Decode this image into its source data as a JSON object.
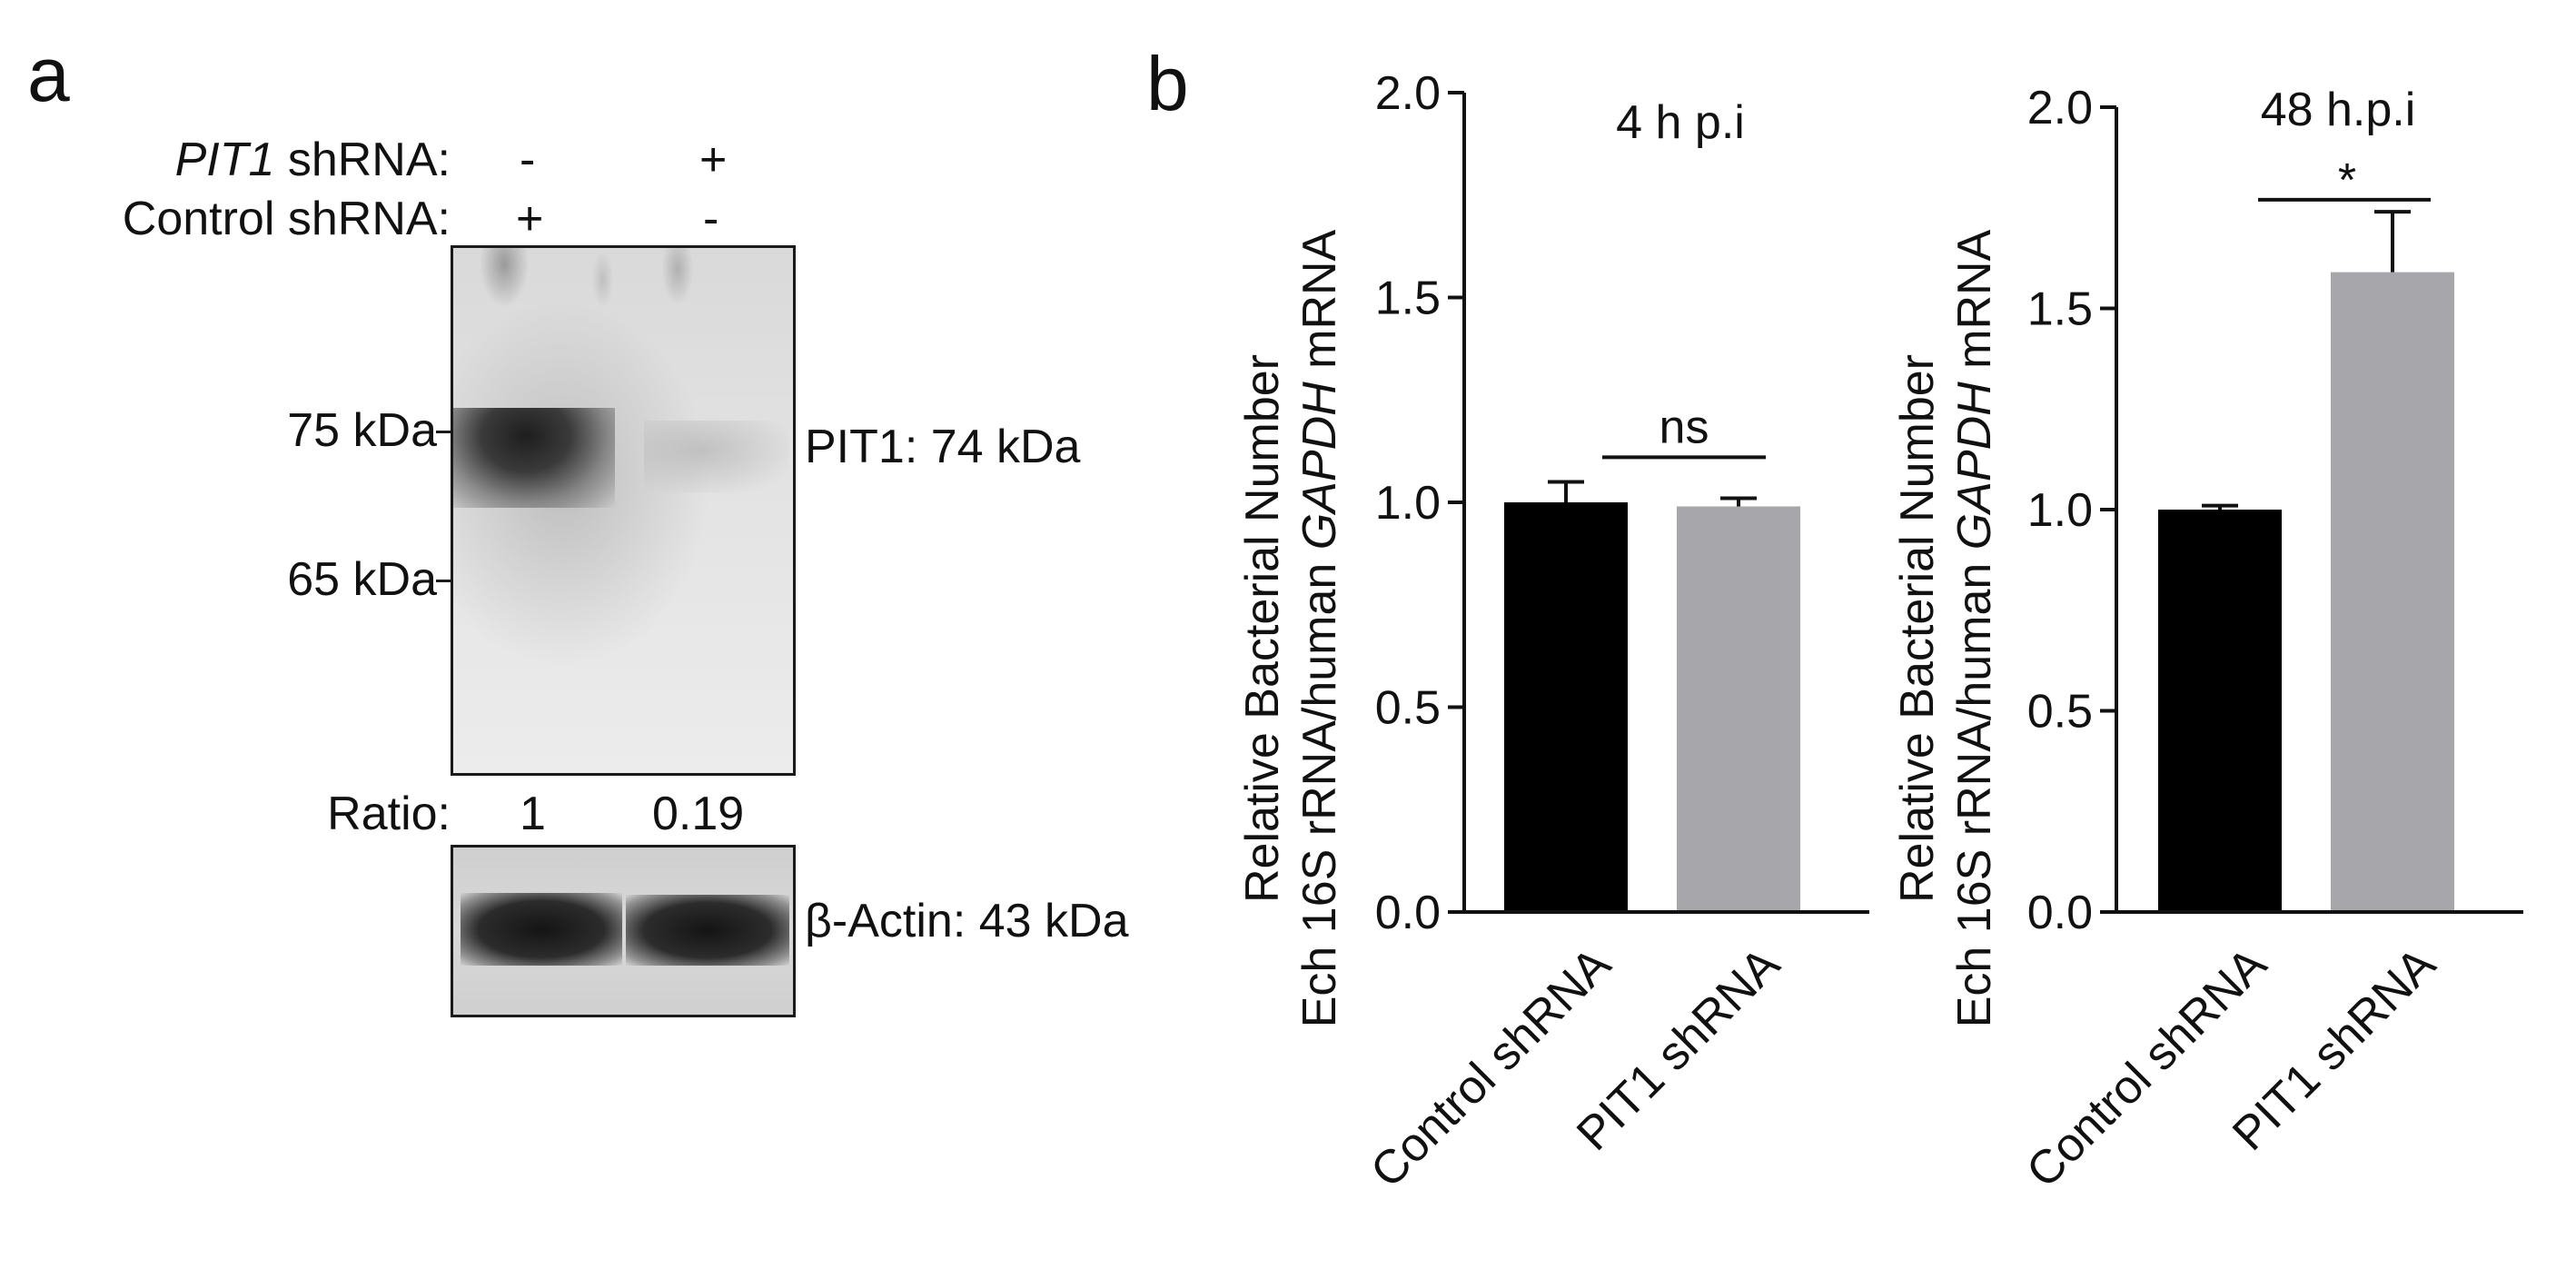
{
  "panel_a": {
    "letter": "a",
    "row_pit1_label": "PIT1",
    "row_pit1_suffix": " shRNA:",
    "row_control_label": "Control shRNA:",
    "lane1_pit1": "-",
    "lane2_pit1": "+",
    "lane1_control": "+",
    "lane2_control": "-",
    "marker_75": "75 kDa",
    "marker_65": "65 kDa",
    "band_label_pit1": "PIT1: 74 kDa",
    "ratio_label": "Ratio:",
    "ratio_lane1": "1",
    "ratio_lane2": "0.19",
    "band_label_actin": "β-Actin: 43 kDa",
    "colors": {
      "blot_bg": "#e6e6e6",
      "band": "#2a2a2a"
    }
  },
  "panel_b": {
    "letter": "b"
  },
  "chart_data": [
    {
      "type": "bar",
      "title": "4 h p.i",
      "ylabel_lines": [
        "Relative Bacterial Number",
        "Ech 16S rRNA/human ",
        "GAPDH",
        " mRNA"
      ],
      "categories": [
        "Control shRNA",
        "PIT1 shRNA"
      ],
      "values": [
        1.0,
        0.99
      ],
      "errors": [
        0.05,
        0.02
      ],
      "colors": [
        "#000000",
        "#a6a6ab"
      ],
      "ylim": [
        0,
        2.0
      ],
      "yticks": [
        "0.0",
        "0.5",
        "1.0",
        "1.5",
        "2.0"
      ],
      "yticks_values": [
        0,
        0.5,
        1.0,
        1.5,
        2.0
      ],
      "significance": {
        "label": "ns",
        "y": 1.11
      }
    },
    {
      "type": "bar",
      "title": "48 h.p.i",
      "ylabel_lines": [
        "Relative Bacterial Number",
        "Ech 16S rRNA/human ",
        "GAPDH",
        " mRNA"
      ],
      "categories": [
        "Control shRNA",
        "PIT1 shRNA"
      ],
      "values": [
        1.0,
        1.59
      ],
      "errors": [
        0.01,
        0.15
      ],
      "colors": [
        "#000000",
        "#a6a6ab"
      ],
      "ylim": [
        0,
        2.0
      ],
      "yticks": [
        "0.0",
        "0.5",
        "1.0",
        "1.5",
        "2.0"
      ],
      "yticks_values": [
        0,
        0.5,
        1.0,
        1.5,
        2.0
      ],
      "significance": {
        "label": "*",
        "y": 1.77
      }
    }
  ]
}
